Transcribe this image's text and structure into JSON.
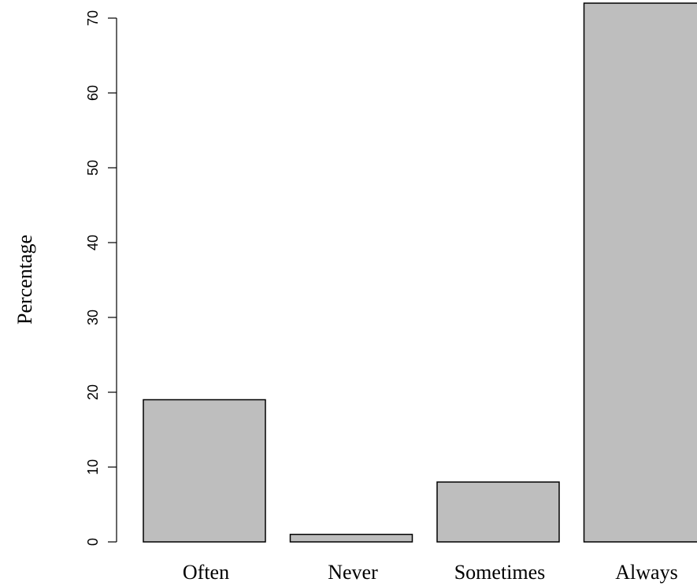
{
  "chart_data": {
    "type": "bar",
    "categories": [
      "Often",
      "Never",
      "Sometimes",
      "Always"
    ],
    "values": [
      19,
      1,
      8,
      72
    ],
    "title": "",
    "xlabel": "",
    "ylabel": "Percentage",
    "ylim": [
      0,
      70
    ],
    "yticks": [
      0,
      10,
      20,
      30,
      40,
      50,
      60,
      70
    ],
    "grid": false,
    "bar_color": "#bebebe",
    "bar_border_color": "#000000"
  }
}
